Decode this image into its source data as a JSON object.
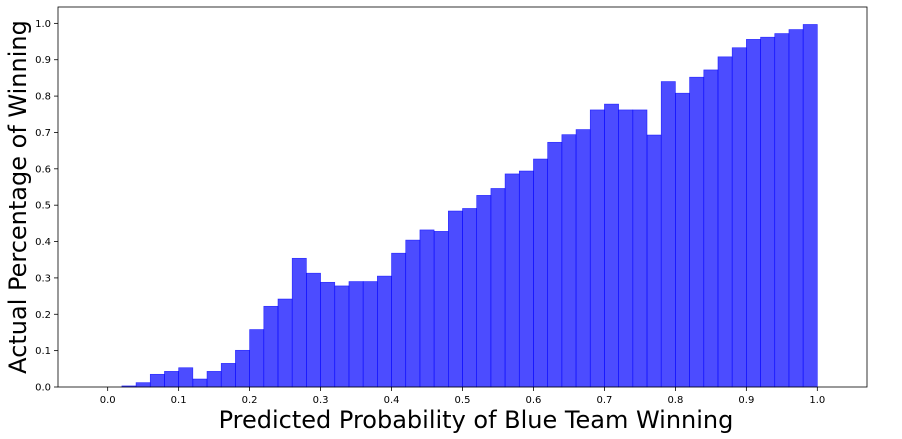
{
  "chart_data": {
    "type": "bar",
    "title": "",
    "xlabel": "Predicted Probability of Blue Team Winning",
    "ylabel": "Actual Percentage of Winning",
    "xlim": [
      -0.07,
      1.07
    ],
    "ylim": [
      0,
      1.045
    ],
    "bar_color": "#0000ff",
    "bar_alpha": 0.7,
    "grid": false,
    "xticks": [
      "0.0",
      "0.1",
      "0.2",
      "0.3",
      "0.4",
      "0.5",
      "0.6",
      "0.7",
      "0.8",
      "0.9",
      "1.0"
    ],
    "yticks": [
      "0.0",
      "0.1",
      "0.2",
      "0.3",
      "0.4",
      "0.5",
      "0.6",
      "0.7",
      "0.8",
      "0.9",
      "1.0"
    ],
    "bin_width": 0.02,
    "bin_starts": [
      0.0,
      0.02,
      0.04,
      0.06,
      0.08,
      0.1,
      0.12,
      0.14,
      0.16,
      0.18,
      0.2,
      0.22,
      0.24,
      0.26,
      0.28,
      0.3,
      0.32,
      0.34,
      0.36,
      0.38,
      0.4,
      0.42,
      0.44,
      0.46,
      0.48,
      0.5,
      0.52,
      0.54,
      0.56,
      0.58,
      0.6,
      0.62,
      0.64,
      0.66,
      0.68,
      0.7,
      0.72,
      0.74,
      0.76,
      0.78,
      0.8,
      0.82,
      0.84,
      0.86,
      0.88,
      0.9,
      0.92,
      0.94,
      0.96,
      0.98
    ],
    "values": [
      0.0,
      0.003,
      0.012,
      0.035,
      0.043,
      0.053,
      0.022,
      0.043,
      0.065,
      0.101,
      0.158,
      0.222,
      0.242,
      0.354,
      0.313,
      0.288,
      0.278,
      0.29,
      0.29,
      0.305,
      0.368,
      0.404,
      0.432,
      0.428,
      0.484,
      0.491,
      0.527,
      0.546,
      0.586,
      0.594,
      0.627,
      0.673,
      0.694,
      0.708,
      0.762,
      0.778,
      0.762,
      0.762,
      0.693,
      0.84,
      0.808,
      0.852,
      0.872,
      0.908,
      0.933,
      0.956,
      0.962,
      0.972,
      0.983,
      0.997
    ]
  }
}
